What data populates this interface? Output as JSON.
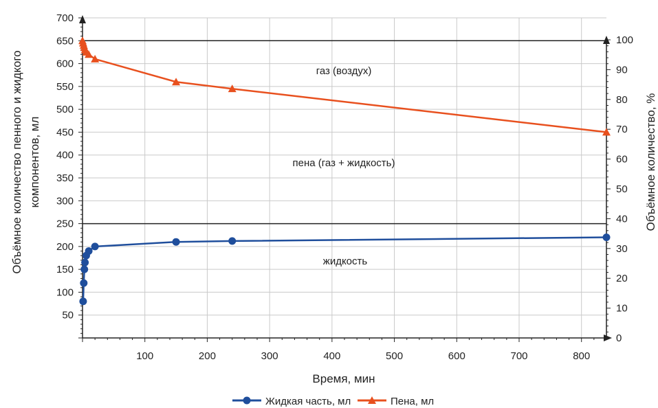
{
  "chart_data": {
    "type": "line",
    "xlabel": "Время, мин",
    "ylabel_left": "Объёмное количество пенного и жидкого компонентов, мл",
    "ylabel_right": "Объёмное количество, %",
    "xlim": [
      0,
      840
    ],
    "ylim_left": [
      0,
      700
    ],
    "ylim_right": [
      0,
      100
    ],
    "x_ticks": [
      "100",
      "200",
      "300",
      "400",
      "500",
      "600",
      "700",
      "800"
    ],
    "y_ticks_left": [
      "50",
      "100",
      "150",
      "200",
      "250",
      "300",
      "350",
      "400",
      "450",
      "500",
      "550",
      "600",
      "650",
      "700"
    ],
    "y_ticks_right": [
      "0",
      "10",
      "20",
      "30",
      "40",
      "50",
      "60",
      "70",
      "80",
      "90",
      "100"
    ],
    "grid": true,
    "legend_position": "bottom",
    "region_labels": [
      "газ (воздух)",
      "пена (газ + жидкость)",
      "жидкость"
    ],
    "series": [
      {
        "name": "Жидкая часть, мл",
        "color": "#1f4e9c",
        "marker": "circle",
        "x": [
          1,
          2,
          3,
          4,
          6,
          10,
          20,
          150,
          240,
          840
        ],
        "y": [
          80,
          120,
          150,
          165,
          180,
          190,
          200,
          210,
          212,
          220
        ]
      },
      {
        "name": "Пена, мл",
        "color": "#e8501e",
        "marker": "triangle",
        "x": [
          0,
          1,
          2,
          3,
          4,
          6,
          10,
          20,
          150,
          240,
          840
        ],
        "y": [
          650,
          645,
          640,
          635,
          630,
          625,
          620,
          610,
          560,
          545,
          450
        ]
      }
    ]
  }
}
